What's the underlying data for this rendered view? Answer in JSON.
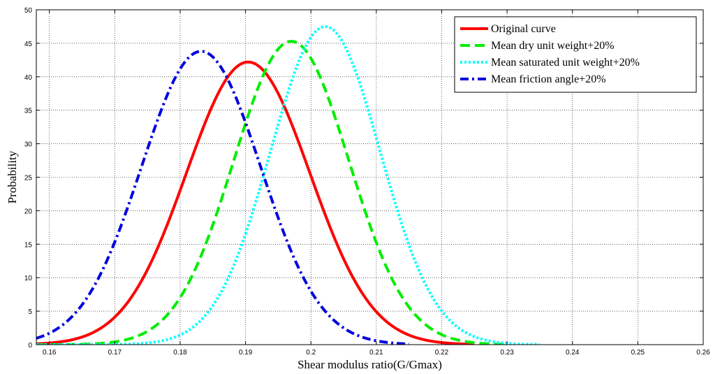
{
  "chart_data": {
    "type": "line",
    "xlabel": "Shear modulus ratio(G/Gmax)",
    "ylabel": "Probability",
    "xlim": [
      0.158,
      0.26
    ],
    "ylim": [
      0,
      50
    ],
    "xticks": [
      0.16,
      0.17,
      0.18,
      0.19,
      0.2,
      0.21,
      0.22,
      0.23,
      0.24,
      0.25,
      0.26
    ],
    "yticks": [
      0,
      5,
      10,
      15,
      20,
      25,
      30,
      35,
      40,
      45,
      50
    ],
    "grid": true,
    "legend_position": "top-right",
    "series": [
      {
        "name": "Original curve",
        "color": "#ff0000",
        "style": "solid",
        "mean": 0.1904,
        "peak": 42.2,
        "x_start": 0.158,
        "x_end": 0.225
      },
      {
        "name": "Mean dry unit weight+20%",
        "color": "#00ee00",
        "style": "dashed",
        "mean": 0.197,
        "peak": 45.3,
        "x_start": 0.158,
        "x_end": 0.23
      },
      {
        "name": "Mean saturated unit weight+20%",
        "color": "#00ffff",
        "style": "dotted",
        "mean": 0.2022,
        "peak": 47.5,
        "x_start": 0.158,
        "x_end": 0.235
      },
      {
        "name": "Mean friction angle+20%",
        "color": "#0000dd",
        "style": "dashdot",
        "mean": 0.1832,
        "peak": 43.8,
        "x_start": 0.158,
        "x_end": 0.215
      }
    ]
  }
}
